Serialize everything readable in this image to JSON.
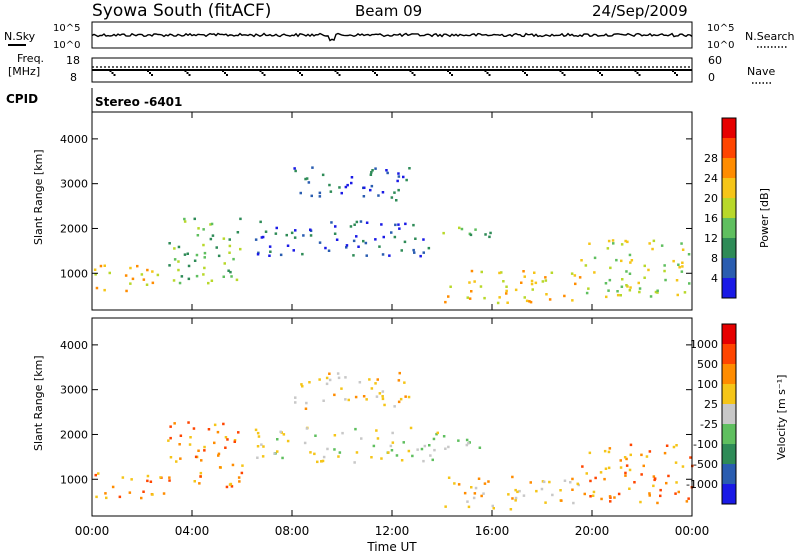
{
  "header": {
    "title": "Syowa South (fitACF)",
    "beam": "Beam 09",
    "date": "24/Sep/2009"
  },
  "top_panels": {
    "nsky_label": "N.Sky",
    "nsearch_label": "N.Search",
    "noise_ticks": [
      "10^5",
      "10^0"
    ],
    "freq_label_1": "Freq.",
    "freq_label_2": "[MHz]",
    "freq_ticks": [
      "18",
      "8"
    ],
    "nave_label": "Nave",
    "nave_ticks": [
      "60",
      "0"
    ],
    "cpid_label": "CPID",
    "cpid_value": "Stereo -6401"
  },
  "chart_data": [
    {
      "type": "heatmap",
      "name": "power",
      "xlabel": "Time UT",
      "ylabel": "Slant Range [km]",
      "colorbar_label": "Power [dB]",
      "colorbar_ticks": [
        "28",
        "24",
        "20",
        "16",
        "12",
        "8",
        "4"
      ],
      "colors": [
        "#1a1ae6",
        "#2a5db0",
        "#2e8b57",
        "#5fbf5f",
        "#b8d82a",
        "#f5c518",
        "#ff8c00",
        "#ff4500",
        "#e60000"
      ],
      "x_ticks": [
        "00:00",
        "04:00",
        "08:00",
        "12:00",
        "16:00",
        "20:00",
        "00:00"
      ],
      "y_ticks": [
        "4000",
        "3000",
        "2000",
        "1000"
      ],
      "xlim_hours": [
        0,
        24
      ],
      "ylim_km": [
        180,
        4600
      ],
      "echo_regions": [
        {
          "t0": 0.0,
          "t1": 3.0,
          "r0": 600,
          "r1": 1200,
          "level": 5
        },
        {
          "t0": 3.0,
          "t1": 6.0,
          "r0": 800,
          "r1": 2300,
          "level": 3
        },
        {
          "t0": 8.0,
          "t1": 12.7,
          "r0": 2600,
          "r1": 3400,
          "level": 1
        },
        {
          "t0": 6.5,
          "t1": 14.0,
          "r0": 1400,
          "r1": 2200,
          "level": 1
        },
        {
          "t0": 14.0,
          "t1": 19.5,
          "r0": 350,
          "r1": 1100,
          "level": 5
        },
        {
          "t0": 14.0,
          "t1": 16.0,
          "r0": 1700,
          "r1": 2100,
          "level": 3
        },
        {
          "t0": 19.5,
          "t1": 24.0,
          "r0": 500,
          "r1": 1800,
          "level": 4
        }
      ]
    },
    {
      "type": "heatmap",
      "name": "velocity",
      "xlabel": "Time UT",
      "ylabel": "Slant Range [km]",
      "colorbar_label": "Velocity [m s⁻¹]",
      "colorbar_ticks": [
        "1000",
        "500",
        "100",
        "25",
        "-25",
        "-100",
        "-500",
        "-1000"
      ],
      "colors": [
        "#1a1ae6",
        "#2a5db0",
        "#2e8b57",
        "#5fbf5f",
        "#c8c8c8",
        "#f5c518",
        "#ff8c00",
        "#ff4500",
        "#e60000"
      ],
      "x_ticks": [
        "00:00",
        "04:00",
        "08:00",
        "12:00",
        "16:00",
        "20:00",
        "00:00"
      ],
      "y_ticks": [
        "4000",
        "3000",
        "2000",
        "1000"
      ],
      "xlim_hours": [
        0,
        24
      ],
      "ylim_km": [
        180,
        4600
      ],
      "echo_regions": [
        {
          "t0": 0.0,
          "t1": 3.0,
          "r0": 600,
          "r1": 1200,
          "level": 6
        },
        {
          "t0": 3.0,
          "t1": 6.0,
          "r0": 800,
          "r1": 2300,
          "level": 6
        },
        {
          "t0": 8.0,
          "t1": 12.7,
          "r0": 2600,
          "r1": 3400,
          "level": 5
        },
        {
          "t0": 6.5,
          "t1": 14.0,
          "r0": 1400,
          "r1": 2200,
          "level": 4
        },
        {
          "t0": 14.0,
          "t1": 19.5,
          "r0": 350,
          "r1": 1100,
          "level": 5
        },
        {
          "t0": 14.0,
          "t1": 16.0,
          "r0": 1700,
          "r1": 2100,
          "level": 3
        },
        {
          "t0": 19.5,
          "t1": 24.0,
          "r0": 500,
          "r1": 1800,
          "level": 6
        }
      ]
    }
  ]
}
